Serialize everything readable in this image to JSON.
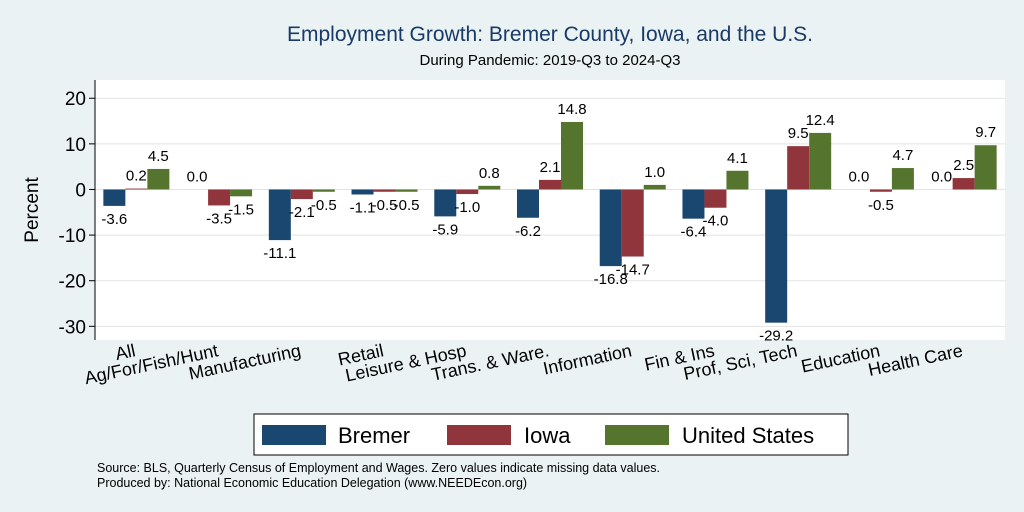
{
  "chart_data": {
    "type": "bar",
    "title": "Employment Growth: Bremer County, Iowa, and the U.S.",
    "subtitle": "During Pandemic: 2019-Q3 to 2024-Q3",
    "ylabel": "Percent",
    "ylim": [
      -33,
      24
    ],
    "yticks": [
      20,
      10,
      0,
      -10,
      -20,
      -30
    ],
    "yticklabels": [
      "20",
      "10",
      "0",
      "-10",
      "-20",
      "-30"
    ],
    "grid": true,
    "legend_position": "bottom",
    "categories": [
      "All",
      "Ag/For/Fish/Hunt",
      "Manufacturing",
      "Retail",
      "Leisure & Hosp",
      "Trans. & Ware.",
      "Information",
      "Fin & Ins",
      "Prof, Sci, Tech",
      "Education",
      "Health Care"
    ],
    "series": [
      {
        "name": "Bremer",
        "color": "#1a476f",
        "values": [
          -3.6,
          0.0,
          -11.1,
          -1.1,
          -5.9,
          -6.2,
          -16.8,
          -6.4,
          -29.2,
          0.0,
          0.0
        ],
        "labels": [
          "-3.6",
          "0.0",
          "-11.1",
          "-1.1",
          "-5.9",
          "-6.2",
          "-16.8",
          "-6.4",
          "-29.2",
          "0.0",
          "0.0"
        ]
      },
      {
        "name": "Iowa",
        "color": "#90353b",
        "values": [
          0.2,
          -3.5,
          -2.1,
          -0.5,
          -1.0,
          2.1,
          -14.7,
          -4.0,
          9.5,
          -0.5,
          2.5
        ],
        "labels": [
          "0.2",
          "-3.5",
          "-2.1",
          "-0.5",
          "-1.0",
          "2.1",
          "-14.7",
          "-4.0",
          "9.5",
          "-0.5",
          "2.5"
        ]
      },
      {
        "name": "United States",
        "color": "#55752f",
        "values": [
          4.5,
          -1.5,
          -0.5,
          -0.5,
          0.8,
          14.8,
          1.0,
          4.1,
          12.4,
          4.7,
          9.7
        ],
        "labels": [
          "4.5",
          "-1.5",
          "-0.5",
          "-0.5",
          "0.8",
          "14.8",
          "1.0",
          "4.1",
          "12.4",
          "4.7",
          "9.7"
        ]
      }
    ]
  },
  "notes": {
    "source": "Source: BLS, Quarterly Census of Employment and Wages. Zero values indicate missing data values.",
    "produced": "Produced by: National Economic Education Delegation (www.NEEDEcon.org)"
  }
}
